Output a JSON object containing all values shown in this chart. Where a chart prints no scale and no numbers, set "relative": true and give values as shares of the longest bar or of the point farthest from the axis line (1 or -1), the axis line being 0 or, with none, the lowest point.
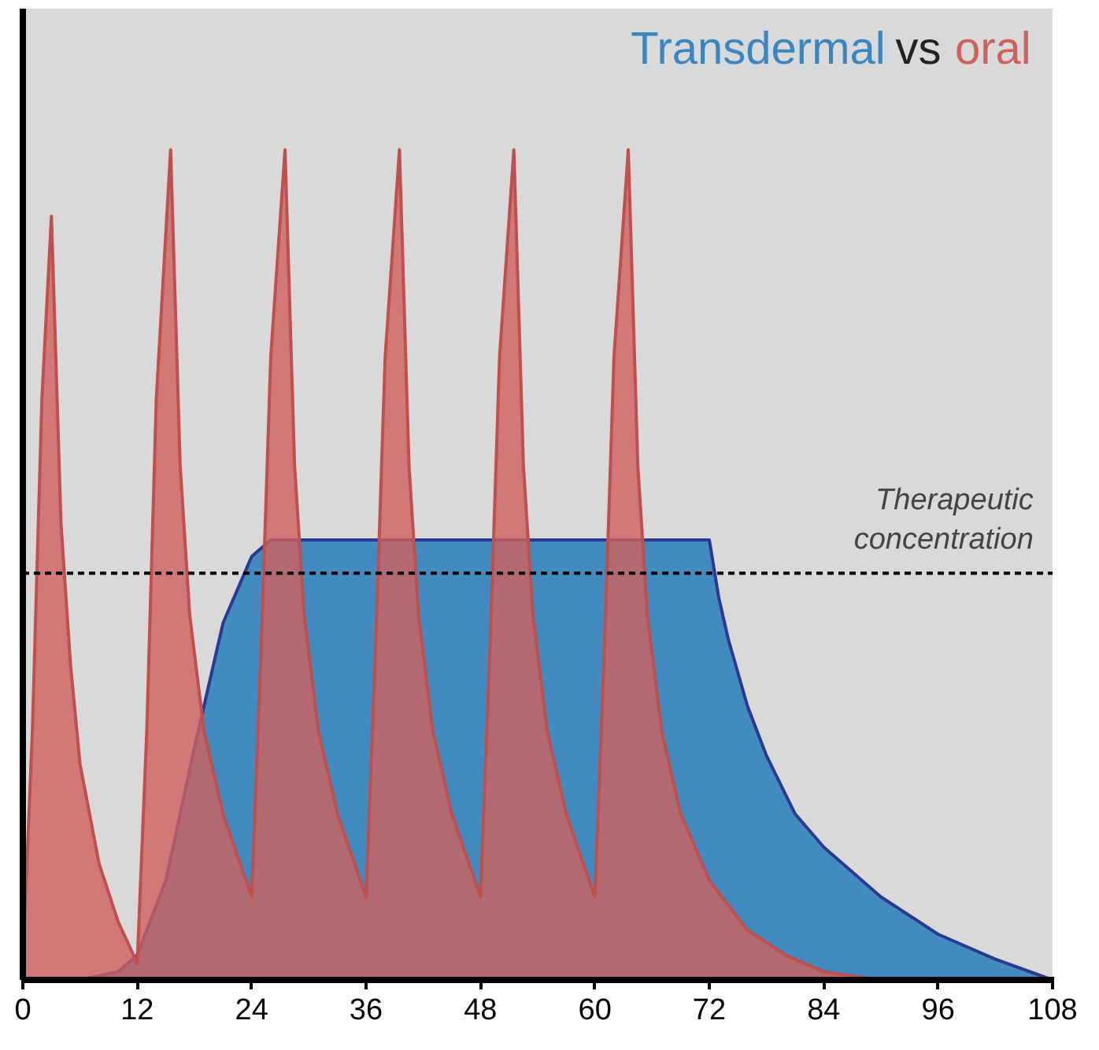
{
  "chart_data": {
    "type": "area",
    "title": "Transdermal vs oral",
    "relative": true,
    "xlim": [
      0,
      108
    ],
    "xticks": [
      0,
      12,
      24,
      36,
      48,
      60,
      72,
      84,
      96,
      108
    ],
    "grid": false,
    "tick_labels": "x",
    "series": [
      {
        "color": "#3a87c0",
        "x": [
          0,
          6,
          10,
          12,
          15,
          18,
          21,
          24,
          26,
          30,
          72,
          73,
          74,
          76,
          78,
          81,
          84,
          90,
          96,
          102,
          108
        ],
        "values": [
          0,
          0,
          0.01,
          0.03,
          0.12,
          0.28,
          0.43,
          0.51,
          0.53,
          0.53,
          0.53,
          0.46,
          0.41,
          0.33,
          0.27,
          0.2,
          0.16,
          0.1,
          0.055,
          0.025,
          0
        ]
      },
      {
        "color": "#d0605e",
        "x": [
          0,
          1,
          2,
          3,
          4,
          5,
          6,
          8,
          10,
          12,
          13,
          14,
          15.5,
          16.5,
          17.5,
          19,
          21,
          24,
          25,
          26,
          27.5,
          28.5,
          29.5,
          31,
          33,
          36,
          37,
          38,
          39.5,
          40.5,
          41.5,
          43,
          45,
          48,
          49,
          50,
          51.5,
          52.5,
          53.5,
          55,
          57,
          60,
          61,
          62,
          63.5,
          64.5,
          65.5,
          67,
          69,
          72,
          76,
          80,
          84,
          90
        ],
        "values": [
          0.02,
          0.3,
          0.7,
          0.92,
          0.55,
          0.38,
          0.26,
          0.14,
          0.07,
          0.02,
          0.3,
          0.7,
          1.0,
          0.62,
          0.44,
          0.3,
          0.2,
          0.1,
          0.4,
          0.75,
          1.0,
          0.62,
          0.44,
          0.3,
          0.2,
          0.1,
          0.4,
          0.75,
          1.0,
          0.62,
          0.44,
          0.3,
          0.2,
          0.1,
          0.4,
          0.75,
          1.0,
          0.62,
          0.44,
          0.3,
          0.2,
          0.1,
          0.4,
          0.75,
          1.0,
          0.62,
          0.44,
          0.3,
          0.2,
          0.12,
          0.06,
          0.03,
          0.01,
          0
        ]
      }
    ],
    "ref_lines": [
      {
        "axis": "y",
        "value": 0.49,
        "label": "Therapeutic concentration",
        "line_style": "dashed",
        "color": "#000000"
      }
    ]
  }
}
